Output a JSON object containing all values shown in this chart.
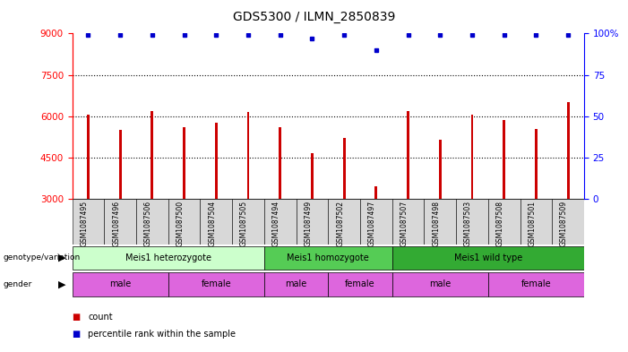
{
  "title": "GDS5300 / ILMN_2850839",
  "samples": [
    "GSM1087495",
    "GSM1087496",
    "GSM1087506",
    "GSM1087500",
    "GSM1087504",
    "GSM1087505",
    "GSM1087494",
    "GSM1087499",
    "GSM1087502",
    "GSM1087497",
    "GSM1087507",
    "GSM1087498",
    "GSM1087503",
    "GSM1087508",
    "GSM1087501",
    "GSM1087509"
  ],
  "counts": [
    6050,
    5500,
    6200,
    5600,
    5750,
    6150,
    5600,
    4650,
    5200,
    3450,
    6200,
    5150,
    6050,
    5850,
    5550,
    6500
  ],
  "percentiles": [
    99,
    99,
    99,
    99,
    99,
    99,
    99,
    97,
    99,
    90,
    99,
    99,
    99,
    99,
    99,
    99
  ],
  "ylim_left": [
    3000,
    9000
  ],
  "ylim_right": [
    0,
    100
  ],
  "yticks_left": [
    3000,
    4500,
    6000,
    7500,
    9000
  ],
  "yticks_right": [
    0,
    25,
    50,
    75,
    100
  ],
  "bar_color": "#cc0000",
  "dot_color": "#0000cc",
  "bg_color": "#ffffff",
  "label_bg": "#d8d8d8",
  "genotype_groups": [
    {
      "label": "Meis1 heterozygote",
      "start": 0,
      "end": 6,
      "color": "#ccffcc"
    },
    {
      "label": "Meis1 homozygote",
      "start": 6,
      "end": 10,
      "color": "#55cc55"
    },
    {
      "label": "Meis1 wild type",
      "start": 10,
      "end": 16,
      "color": "#33aa33"
    }
  ],
  "gender_groups": [
    {
      "label": "male",
      "start": 0,
      "end": 3
    },
    {
      "label": "female",
      "start": 3,
      "end": 6
    },
    {
      "label": "male",
      "start": 6,
      "end": 8
    },
    {
      "label": "female",
      "start": 8,
      "end": 10
    },
    {
      "label": "male",
      "start": 10,
      "end": 13
    },
    {
      "label": "female",
      "start": 13,
      "end": 16
    }
  ],
  "gender_color": "#dd66dd",
  "legend_count_color": "#cc0000",
  "legend_dot_color": "#0000cc",
  "grid_yticks": [
    4500,
    6000,
    7500
  ],
  "right_axis_label": "100%"
}
